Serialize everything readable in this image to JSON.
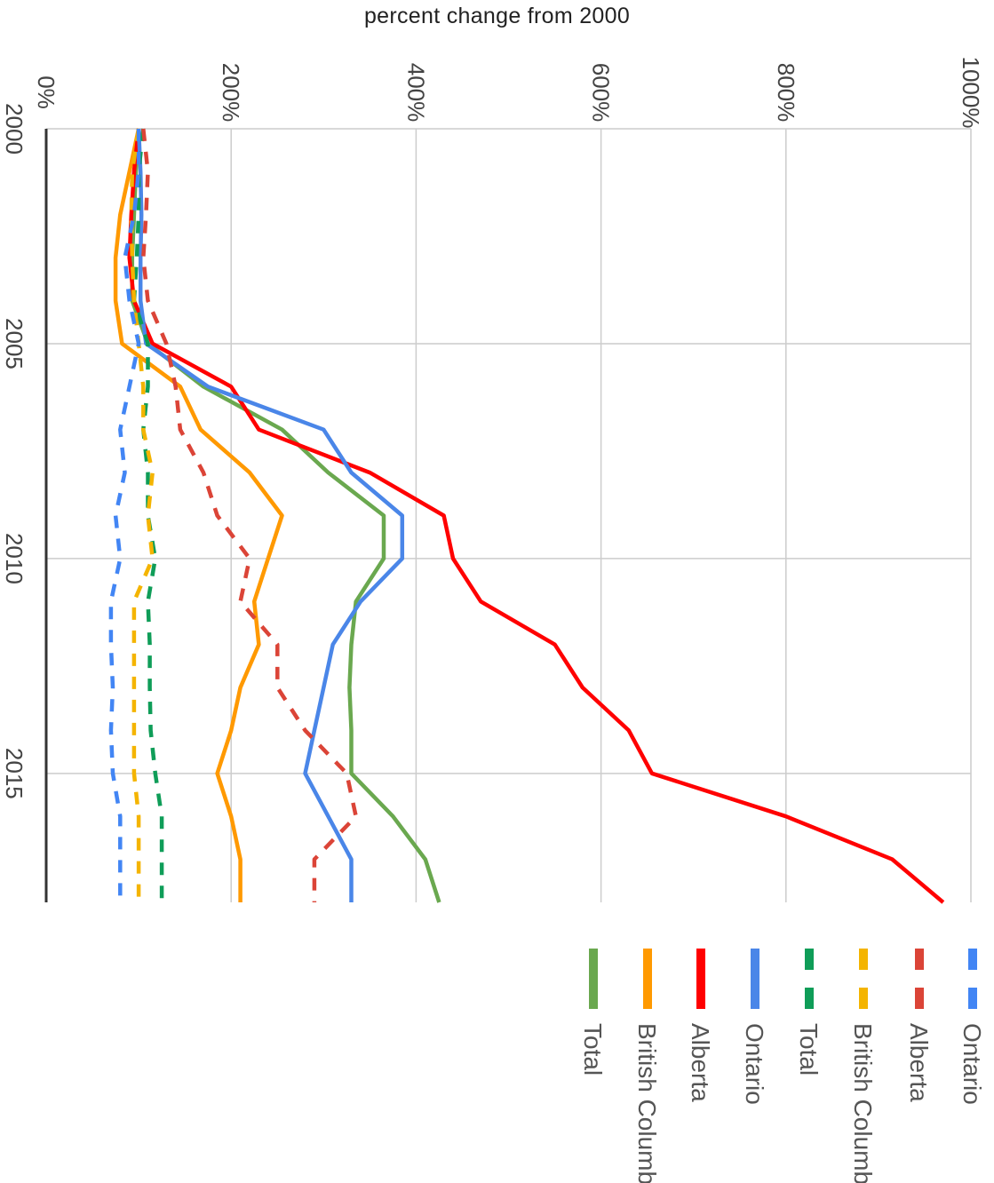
{
  "chart_data": {
    "type": "line",
    "title": "percent change from 2000",
    "orientation": "rotated-90-clockwise",
    "x_axis": {
      "label": "",
      "range": [
        2000,
        2018
      ],
      "ticks": [
        "2000",
        "2005",
        "2010",
        "2015"
      ],
      "tick_values": [
        2000,
        2005,
        2010,
        2015
      ]
    },
    "y_axis": {
      "label": "",
      "range": [
        0,
        1000
      ],
      "ticks": [
        "0%",
        "200%",
        "400%",
        "600%",
        "800%",
        "1000%"
      ],
      "tick_values": [
        0,
        200,
        400,
        600,
        800,
        1000
      ]
    },
    "grid": true,
    "legend_position": "bottom",
    "x": [
      2000,
      2001,
      2002,
      2003,
      2004,
      2005,
      2006,
      2007,
      2008,
      2009,
      2010,
      2011,
      2012,
      2013,
      2014,
      2015,
      2016,
      2017,
      2018
    ],
    "series": [
      {
        "name": "Total",
        "style": "solid",
        "color": "#6aa84f",
        "values": [
          100,
          97,
          95,
          93,
          93,
          110,
          170,
          255,
          305,
          365,
          365,
          335,
          330,
          328,
          330,
          330,
          375,
          410,
          425
        ]
      },
      {
        "name": "British Columbia",
        "style": "solid",
        "color": "#ff9900",
        "values": [
          100,
          90,
          80,
          75,
          75,
          82,
          145,
          167,
          220,
          255,
          240,
          225,
          230,
          210,
          200,
          185,
          200,
          210,
          210
        ]
      },
      {
        "name": "Alberta",
        "style": "solid",
        "color": "#ff0000",
        "values": [
          100,
          95,
          92,
          90,
          95,
          115,
          200,
          230,
          350,
          430,
          440,
          470,
          550,
          580,
          630,
          655,
          800,
          915,
          970
        ]
      },
      {
        "name": "Ontario",
        "style": "solid",
        "color": "#4a86e8",
        "values": [
          100,
          102,
          103,
          102,
          102,
          108,
          175,
          300,
          330,
          385,
          385,
          340,
          310,
          300,
          290,
          280,
          305,
          330,
          330
        ]
      },
      {
        "name": "Total",
        "style": "dashed",
        "color": "#0f9d58",
        "values": [
          105,
          100,
          100,
          98,
          95,
          110,
          110,
          105,
          110,
          110,
          118,
          110,
          112,
          112,
          113,
          118,
          125,
          125,
          125
        ]
      },
      {
        "name": "British Columbia",
        "style": "dashed",
        "color": "#f4b400",
        "values": [
          100,
          93,
          92,
          93,
          95,
          100,
          105,
          105,
          115,
          110,
          115,
          95,
          95,
          95,
          95,
          95,
          100,
          100,
          100
        ]
      },
      {
        "name": "Alberta",
        "style": "dashed",
        "color": "#db4437",
        "values": [
          105,
          110,
          108,
          105,
          110,
          130,
          140,
          145,
          170,
          185,
          220,
          210,
          250,
          250,
          280,
          325,
          335,
          290,
          290
        ]
      },
      {
        "name": "Ontario",
        "style": "dashed",
        "color": "#4285f4",
        "values": [
          100,
          100,
          95,
          85,
          90,
          100,
          90,
          80,
          85,
          75,
          80,
          70,
          70,
          72,
          70,
          72,
          80,
          80,
          80
        ]
      }
    ]
  }
}
